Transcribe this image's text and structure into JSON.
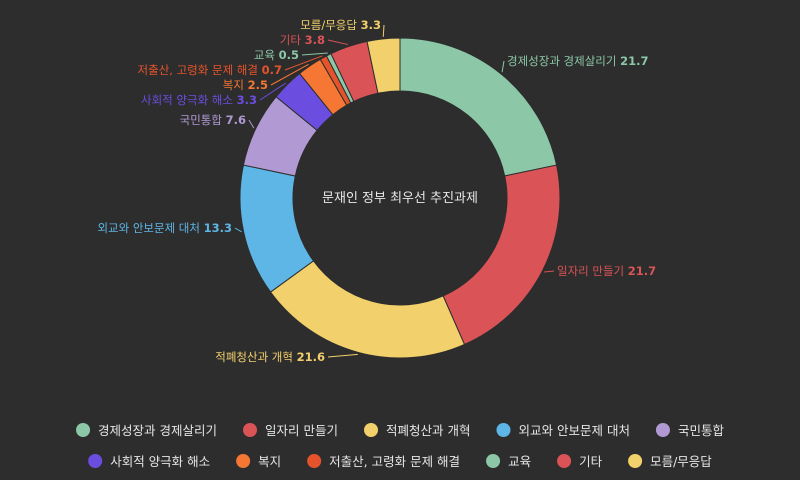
{
  "chart_data": {
    "type": "pie",
    "variant": "donut",
    "title": "문재인 정부 최우선 추진과제",
    "legend_position": "bottom",
    "slices": [
      {
        "label": "경제성장과 경제살리기",
        "value": 21.7,
        "color": "#8cc7a8"
      },
      {
        "label": "일자리 만들기",
        "value": 21.7,
        "color": "#d95357"
      },
      {
        "label": "적폐청산과 개혁",
        "value": 21.6,
        "color": "#f2d06b"
      },
      {
        "label": "외교와 안보문제 대처",
        "value": 13.3,
        "color": "#5db6e6"
      },
      {
        "label": "국민통합",
        "value": 7.6,
        "color": "#b19ad3"
      },
      {
        "label": "사회적 양극화 해소",
        "value": 3.3,
        "color": "#6b4ee0"
      },
      {
        "label": "복지",
        "value": 2.5,
        "color": "#f57733"
      },
      {
        "label": "저출산, 고령화 문제 해결",
        "value": 0.7,
        "color": "#e5532d"
      },
      {
        "label": "교육",
        "value": 0.5,
        "color": "#8cc7a8"
      },
      {
        "label": "기타",
        "value": 3.8,
        "color": "#d95357"
      },
      {
        "label": "모름/무응답",
        "value": 3.3,
        "color": "#f2d06b"
      }
    ]
  }
}
